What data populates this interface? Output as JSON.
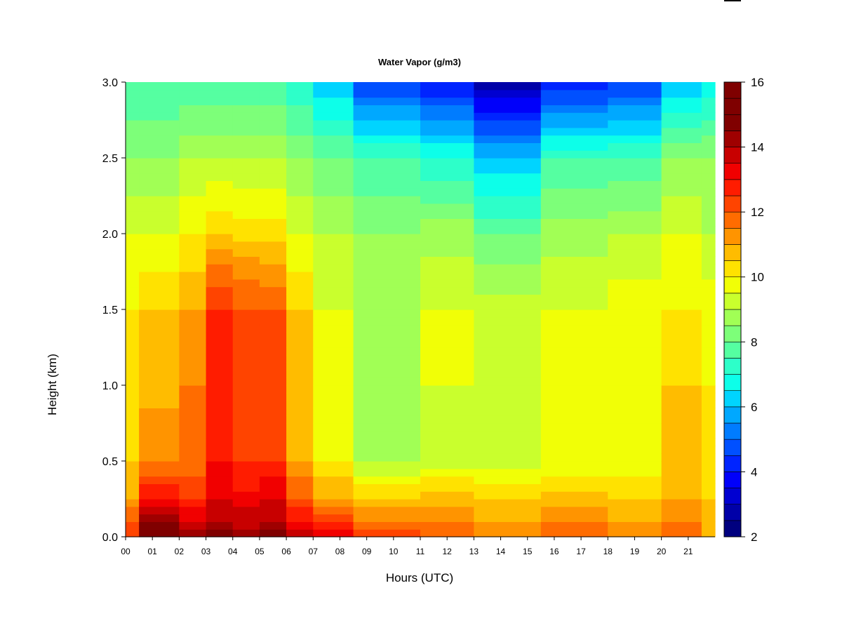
{
  "chart_data": {
    "type": "heatmap",
    "title": "Water Vapor (g/m3)",
    "xlabel": "Hours (UTC)",
    "ylabel": "Height (km)",
    "x_ticks": [
      "00",
      "01",
      "02",
      "03",
      "04",
      "05",
      "06",
      "07",
      "08",
      "09",
      "10",
      "11",
      "12",
      "13",
      "14",
      "15",
      "16",
      "17",
      "18",
      "19",
      "20",
      "21"
    ],
    "x_range": [
      0,
      22
    ],
    "y_ticks": [
      "0.0",
      "0.5",
      "1.0",
      "1.5",
      "2.0",
      "2.5",
      "3.0"
    ],
    "y_range": [
      0,
      3.0
    ],
    "colorbar": {
      "range": [
        2,
        16
      ],
      "step": 0.5,
      "ticks": [
        "2",
        "4",
        "6",
        "8",
        "10",
        "12",
        "14",
        "16"
      ],
      "colors": [
        "#00007f",
        "#0000a8",
        "#0000d1",
        "#0000fa",
        "#0024ff",
        "#0050ff",
        "#007cff",
        "#00a8ff",
        "#00d4ff",
        "#0dffe9",
        "#2dffc9",
        "#55ffa1",
        "#7dff79",
        "#a1ff55",
        "#c9ff2d",
        "#f1ff06",
        "#ffe200",
        "#ffbc00",
        "#ff9400",
        "#ff6c00",
        "#ff4400",
        "#ff1c00",
        "#f10000",
        "#c80000",
        "#9f0000",
        "#800000",
        "#7f0000",
        "#7f0000"
      ]
    },
    "columns": [
      {
        "hour_start": 0.0,
        "hour_end": 0.5,
        "values_by_height": [
          {
            "km": 0.0,
            "g_m3": 12.5
          },
          {
            "km": 0.1,
            "g_m3": 12.0
          },
          {
            "km": 0.25,
            "g_m3": 11.0
          },
          {
            "km": 0.5,
            "g_m3": 10.5
          },
          {
            "km": 1.0,
            "g_m3": 10.3
          },
          {
            "km": 1.5,
            "g_m3": 10.0
          },
          {
            "km": 2.0,
            "g_m3": 9.5
          },
          {
            "km": 2.5,
            "g_m3": 8.5
          },
          {
            "km": 3.0,
            "g_m3": 7.5
          }
        ]
      },
      {
        "hour_start": 0.5,
        "hour_end": 2.0,
        "values_by_height": [
          {
            "km": 0.0,
            "g_m3": 15.5
          },
          {
            "km": 0.1,
            "g_m3": 14.5
          },
          {
            "km": 0.25,
            "g_m3": 13.0
          },
          {
            "km": 0.5,
            "g_m3": 11.5
          },
          {
            "km": 1.0,
            "g_m3": 10.8
          },
          {
            "km": 1.5,
            "g_m3": 10.5
          },
          {
            "km": 2.0,
            "g_m3": 9.5
          },
          {
            "km": 2.5,
            "g_m3": 8.5
          },
          {
            "km": 3.0,
            "g_m3": 7.5
          }
        ]
      },
      {
        "hour_start": 2.0,
        "hour_end": 3.0,
        "values_by_height": [
          {
            "km": 0.0,
            "g_m3": 14.5
          },
          {
            "km": 0.1,
            "g_m3": 13.5
          },
          {
            "km": 0.25,
            "g_m3": 12.5
          },
          {
            "km": 0.5,
            "g_m3": 11.5
          },
          {
            "km": 1.0,
            "g_m3": 11.5
          },
          {
            "km": 1.5,
            "g_m3": 11.0
          },
          {
            "km": 2.0,
            "g_m3": 10.0
          },
          {
            "km": 2.5,
            "g_m3": 9.0
          },
          {
            "km": 3.0,
            "g_m3": 7.5
          }
        ]
      },
      {
        "hour_start": 3.0,
        "hour_end": 4.0,
        "values_by_height": [
          {
            "km": 0.0,
            "g_m3": 14.8
          },
          {
            "km": 0.1,
            "g_m3": 14.0
          },
          {
            "km": 0.25,
            "g_m3": 13.5
          },
          {
            "km": 0.5,
            "g_m3": 13.0
          },
          {
            "km": 1.0,
            "g_m3": 12.8
          },
          {
            "km": 1.5,
            "g_m3": 12.5
          },
          {
            "km": 1.8,
            "g_m3": 11.5
          },
          {
            "km": 2.0,
            "g_m3": 10.5
          },
          {
            "km": 2.5,
            "g_m3": 9.0
          },
          {
            "km": 3.0,
            "g_m3": 7.5
          }
        ]
      },
      {
        "hour_start": 4.0,
        "hour_end": 5.0,
        "values_by_height": [
          {
            "km": 0.0,
            "g_m3": 14.5
          },
          {
            "km": 0.1,
            "g_m3": 13.8
          },
          {
            "km": 0.25,
            "g_m3": 13.2
          },
          {
            "km": 0.5,
            "g_m3": 12.5
          },
          {
            "km": 1.0,
            "g_m3": 12.3
          },
          {
            "km": 1.5,
            "g_m3": 12.0
          },
          {
            "km": 1.8,
            "g_m3": 11.2
          },
          {
            "km": 2.0,
            "g_m3": 10.3
          },
          {
            "km": 2.5,
            "g_m3": 9.0
          },
          {
            "km": 3.0,
            "g_m3": 7.5
          }
        ]
      },
      {
        "hour_start": 5.0,
        "hour_end": 6.0,
        "values_by_height": [
          {
            "km": 0.0,
            "g_m3": 14.8
          },
          {
            "km": 0.1,
            "g_m3": 14.0
          },
          {
            "km": 0.25,
            "g_m3": 13.5
          },
          {
            "km": 0.5,
            "g_m3": 12.5
          },
          {
            "km": 1.0,
            "g_m3": 12.3
          },
          {
            "km": 1.5,
            "g_m3": 12.0
          },
          {
            "km": 1.8,
            "g_m3": 11.0
          },
          {
            "km": 2.0,
            "g_m3": 10.3
          },
          {
            "km": 2.5,
            "g_m3": 9.0
          },
          {
            "km": 3.0,
            "g_m3": 7.5
          }
        ]
      },
      {
        "hour_start": 6.0,
        "hour_end": 7.0,
        "values_by_height": [
          {
            "km": 0.0,
            "g_m3": 14.0
          },
          {
            "km": 0.1,
            "g_m3": 13.0
          },
          {
            "km": 0.25,
            "g_m3": 12.0
          },
          {
            "km": 0.5,
            "g_m3": 11.0
          },
          {
            "km": 1.0,
            "g_m3": 10.8
          },
          {
            "km": 1.5,
            "g_m3": 10.5
          },
          {
            "km": 2.0,
            "g_m3": 9.5
          },
          {
            "km": 2.5,
            "g_m3": 8.5
          },
          {
            "km": 3.0,
            "g_m3": 7.0
          }
        ]
      },
      {
        "hour_start": 7.0,
        "hour_end": 8.5,
        "values_by_height": [
          {
            "km": 0.0,
            "g_m3": 13.8
          },
          {
            "km": 0.1,
            "g_m3": 12.5
          },
          {
            "km": 0.25,
            "g_m3": 11.0
          },
          {
            "km": 0.5,
            "g_m3": 10.0
          },
          {
            "km": 1.0,
            "g_m3": 9.5
          },
          {
            "km": 1.5,
            "g_m3": 9.5
          },
          {
            "km": 2.0,
            "g_m3": 9.0
          },
          {
            "km": 2.5,
            "g_m3": 8.0
          },
          {
            "km": 3.0,
            "g_m3": 6.0
          }
        ]
      },
      {
        "hour_start": 8.5,
        "hour_end": 11.0,
        "values_by_height": [
          {
            "km": 0.0,
            "g_m3": 12.5
          },
          {
            "km": 0.1,
            "g_m3": 11.5
          },
          {
            "km": 0.25,
            "g_m3": 10.5
          },
          {
            "km": 0.5,
            "g_m3": 9.0
          },
          {
            "km": 1.0,
            "g_m3": 8.8
          },
          {
            "km": 1.5,
            "g_m3": 9.0
          },
          {
            "km": 2.0,
            "g_m3": 8.5
          },
          {
            "km": 2.5,
            "g_m3": 7.5
          },
          {
            "km": 3.0,
            "g_m3": 4.5
          }
        ]
      },
      {
        "hour_start": 11.0,
        "hour_end": 13.0,
        "values_by_height": [
          {
            "km": 0.0,
            "g_m3": 12.0
          },
          {
            "km": 0.1,
            "g_m3": 11.5
          },
          {
            "km": 0.25,
            "g_m3": 10.8
          },
          {
            "km": 0.5,
            "g_m3": 9.3
          },
          {
            "km": 1.0,
            "g_m3": 9.5
          },
          {
            "km": 1.5,
            "g_m3": 9.5
          },
          {
            "km": 2.0,
            "g_m3": 8.8
          },
          {
            "km": 2.5,
            "g_m3": 7.0
          },
          {
            "km": 3.0,
            "g_m3": 4.0
          }
        ]
      },
      {
        "hour_start": 13.0,
        "hour_end": 15.5,
        "values_by_height": [
          {
            "km": 0.0,
            "g_m3": 11.5
          },
          {
            "km": 0.1,
            "g_m3": 11.0
          },
          {
            "km": 0.25,
            "g_m3": 10.5
          },
          {
            "km": 0.5,
            "g_m3": 9.3
          },
          {
            "km": 1.0,
            "g_m3": 9.5
          },
          {
            "km": 1.5,
            "g_m3": 9.3
          },
          {
            "km": 2.0,
            "g_m3": 8.0
          },
          {
            "km": 2.5,
            "g_m3": 6.0
          },
          {
            "km": 3.0,
            "g_m3": 2.8
          }
        ]
      },
      {
        "hour_start": 15.5,
        "hour_end": 18.0,
        "values_by_height": [
          {
            "km": 0.0,
            "g_m3": 12.0
          },
          {
            "km": 0.1,
            "g_m3": 11.5
          },
          {
            "km": 0.25,
            "g_m3": 10.8
          },
          {
            "km": 0.5,
            "g_m3": 9.5
          },
          {
            "km": 1.0,
            "g_m3": 9.5
          },
          {
            "km": 1.5,
            "g_m3": 9.5
          },
          {
            "km": 2.0,
            "g_m3": 8.8
          },
          {
            "km": 2.5,
            "g_m3": 7.5
          },
          {
            "km": 3.0,
            "g_m3": 4.0
          }
        ]
      },
      {
        "hour_start": 18.0,
        "hour_end": 20.0,
        "values_by_height": [
          {
            "km": 0.0,
            "g_m3": 11.5
          },
          {
            "km": 0.1,
            "g_m3": 11.0
          },
          {
            "km": 0.25,
            "g_m3": 10.5
          },
          {
            "km": 0.5,
            "g_m3": 9.5
          },
          {
            "km": 1.0,
            "g_m3": 9.8
          },
          {
            "km": 1.5,
            "g_m3": 9.8
          },
          {
            "km": 2.0,
            "g_m3": 9.0
          },
          {
            "km": 2.5,
            "g_m3": 7.5
          },
          {
            "km": 3.0,
            "g_m3": 4.5
          }
        ]
      },
      {
        "hour_start": 20.0,
        "hour_end": 21.5,
        "values_by_height": [
          {
            "km": 0.0,
            "g_m3": 12.0
          },
          {
            "km": 0.1,
            "g_m3": 11.5
          },
          {
            "km": 0.25,
            "g_m3": 11.0
          },
          {
            "km": 0.5,
            "g_m3": 10.5
          },
          {
            "km": 1.0,
            "g_m3": 10.5
          },
          {
            "km": 1.5,
            "g_m3": 10.0
          },
          {
            "km": 2.0,
            "g_m3": 9.5
          },
          {
            "km": 2.5,
            "g_m3": 8.5
          },
          {
            "km": 3.0,
            "g_m3": 6.0
          }
        ]
      },
      {
        "hour_start": 21.5,
        "hour_end": 22.0,
        "values_by_height": [
          {
            "km": 0.0,
            "g_m3": 11.0
          },
          {
            "km": 0.1,
            "g_m3": 10.8
          },
          {
            "km": 0.25,
            "g_m3": 10.5
          },
          {
            "km": 0.5,
            "g_m3": 10.0
          },
          {
            "km": 1.0,
            "g_m3": 10.0
          },
          {
            "km": 1.5,
            "g_m3": 9.8
          },
          {
            "km": 2.0,
            "g_m3": 9.0
          },
          {
            "km": 2.5,
            "g_m3": 8.5
          },
          {
            "km": 3.0,
            "g_m3": 6.5
          }
        ]
      }
    ]
  }
}
